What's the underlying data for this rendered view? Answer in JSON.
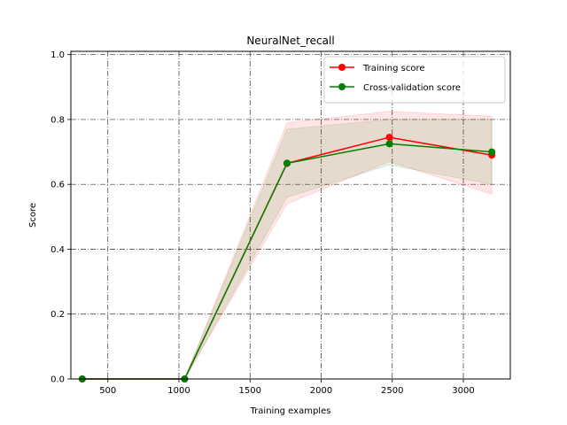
{
  "chart_data": {
    "type": "line",
    "title": "NeuralNet_recall",
    "xlabel": "Training examples",
    "ylabel": "Score",
    "xlim": [
      240,
      3330
    ],
    "ylim": [
      0.0,
      1.01
    ],
    "x_ticks": [
      500,
      1000,
      1500,
      2000,
      2500,
      3000
    ],
    "y_ticks": [
      0.0,
      0.2,
      0.4,
      0.6,
      0.8,
      1.0
    ],
    "x_tick_labels": [
      "500",
      "1000",
      "1500",
      "2000",
      "2500",
      "3000"
    ],
    "y_tick_labels": [
      "0.0",
      "0.2",
      "0.4",
      "0.6",
      "0.8",
      "1.0"
    ],
    "grid": true,
    "grid_style": "dash-dot",
    "legend_position": "top-right",
    "x": [
      320,
      1040,
      1760,
      2480,
      3200
    ],
    "series": [
      {
        "name": "Training score",
        "color": "#ff0000",
        "values": [
          0.0,
          0.0,
          0.665,
          0.745,
          0.69
        ],
        "band_lower": [
          0.0,
          0.0,
          0.54,
          0.67,
          0.57
        ],
        "band_upper": [
          0.0,
          0.0,
          0.79,
          0.825,
          0.81
        ]
      },
      {
        "name": "Cross-validation score",
        "color": "#008000",
        "values": [
          0.0,
          0.0,
          0.665,
          0.725,
          0.7
        ],
        "band_lower": [
          0.0,
          0.0,
          0.56,
          0.66,
          0.6
        ],
        "band_upper": [
          0.0,
          0.0,
          0.77,
          0.8,
          0.8
        ]
      }
    ]
  }
}
